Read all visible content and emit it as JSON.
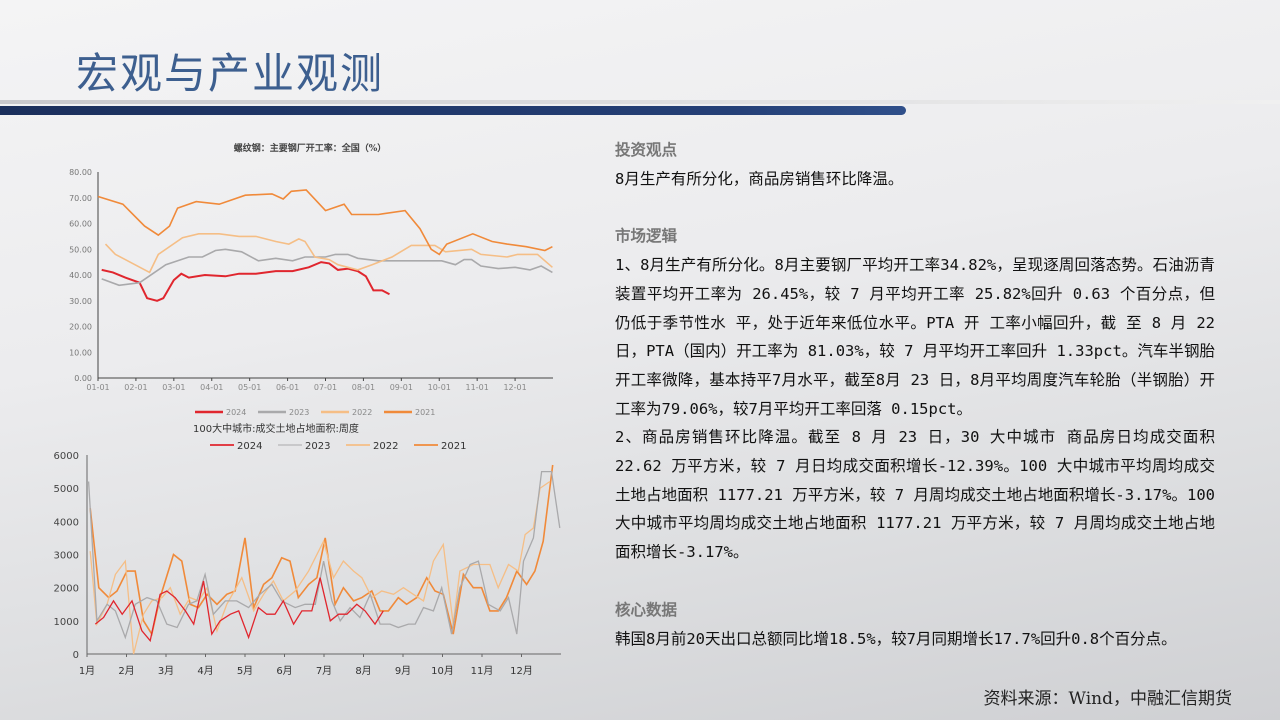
{
  "header": {
    "title": "宏观与产业观测"
  },
  "colors": {
    "s2024": "#e0262e",
    "s2023": "#a9a9ab",
    "s2022": "#f5be86",
    "s2021": "#f08a3a",
    "title": "#3d5f8f",
    "bar": "#1b2f5c"
  },
  "right": {
    "h1": "投资观点",
    "p1": "8月生产有所分化，商品房销售环比降温。",
    "h2": "市场逻辑",
    "p2": "1、8月生产有所分化。8月主要钢厂平均开工率34.82%，呈现逐周回落态势。石油沥青装置平均开工率为 26.45%，较 7 月平均开工率 25.82%回升 0.63 个百分点，但仍低于季节性水 平，处于近年来低位水平。PTA 开 工率小幅回升，截 至 8 月 22 日，PTA（国内）开工率为 81.03%，较 7 月平均开工率回升 1.33pct。汽车半钢胎开工率微降，基本持平7月水平，截至8月 23 日，8月平均周度汽车轮胎（半钢胎）开工率为79.06%，较7月平均开工率回落 0.15pct。",
    "p3": "2、商品房销售环比降温。截至 8 月 23 日，30 大中城市 商品房日均成交面积 22.62 万平方米，较 7 月日均成交面积增长-12.39%。100 大中城市平均周均成交土地占地面积 1177.21 万平方米，较 7 月周均成交土地占地面积增长-3.17%。100 大中城市平均周均成交土地占地面积 1177.21 万平方米，较 7 月周均成交土地占地面积增长-3.17%。",
    "h3": "核心数据",
    "p4": "韩国8月前20天出口总额同比增18.5%，较7月同期增长17.7%回升0.8个百分点。"
  },
  "source": "资料来源：Wind，中融汇信期货",
  "chart_data": [
    {
      "type": "line",
      "title": "螺纹钢：主要钢厂开工率：全国（%）",
      "ylim": [
        0,
        80
      ],
      "yticks": [
        "0.00",
        "10.00",
        "20.00",
        "30.00",
        "40.00",
        "50.00",
        "60.00",
        "70.00",
        "80.00"
      ],
      "xticks": [
        "01-01",
        "02-01",
        "03-01",
        "04-01",
        "05-01",
        "06-01",
        "07-01",
        "08-01",
        "09-01",
        "10-01",
        "11-01",
        "12-01"
      ],
      "legend": "bottom",
      "grid": false,
      "series": [
        {
          "name": "2024",
          "color": "#e0262e",
          "x": [
            "01-04",
            "01-13",
            "01-23",
            "02-04",
            "02-10",
            "02-18",
            "02-23",
            "03-01",
            "03-07",
            "03-13",
            "03-26",
            "04-12",
            "04-23",
            "05-06",
            "05-22",
            "06-05",
            "06-18",
            "06-28",
            "07-04",
            "07-11",
            "07-19",
            "07-27",
            "08-03",
            "08-09",
            "08-16",
            "08-22"
          ],
          "y": [
            42,
            41,
            39,
            37,
            31,
            30,
            31,
            38,
            40.5,
            39,
            40,
            39.5,
            40.5,
            40.5,
            41.5,
            41.5,
            43,
            45,
            44.5,
            42,
            42.5,
            41.5,
            39.5,
            34,
            34,
            32.5
          ]
        },
        {
          "name": "2023",
          "color": "#a9a9ab",
          "x": [
            "01-04",
            "01-18",
            "02-04",
            "02-25",
            "03-13",
            "03-24",
            "04-04",
            "04-12",
            "04-25",
            "05-08",
            "05-22",
            "06-05",
            "06-15",
            "07-01",
            "07-09",
            "07-19",
            "07-27",
            "08-13",
            "09-15",
            "10-03",
            "10-14",
            "10-21",
            "10-27",
            "11-04",
            "11-18",
            "12-01",
            "12-13",
            "12-22",
            "12-31"
          ],
          "y": [
            38.5,
            36,
            37,
            44,
            47,
            47,
            49.5,
            50,
            49,
            45.5,
            46.5,
            45.5,
            47,
            47,
            48,
            48,
            46.5,
            45.5,
            45.5,
            45.5,
            44,
            46,
            46,
            43.5,
            42.5,
            43,
            42,
            43.5,
            41
          ]
        },
        {
          "name": "2022",
          "color": "#f5be86",
          "x": [
            "01-07",
            "01-15",
            "02-12",
            "02-19",
            "03-08",
            "03-21",
            "04-07",
            "04-23",
            "05-06",
            "05-22",
            "06-02",
            "06-10",
            "06-15",
            "06-23",
            "07-04",
            "07-11",
            "07-27",
            "08-08",
            "08-24",
            "09-09",
            "09-28",
            "10-06",
            "10-27",
            "11-04",
            "11-25",
            "12-03",
            "12-19",
            "12-31"
          ],
          "y": [
            52,
            48,
            41,
            48,
            54.5,
            56,
            56,
            55,
            55,
            53,
            52,
            54,
            53,
            47,
            46,
            44,
            42,
            44,
            47,
            51.5,
            51.5,
            49,
            50,
            48,
            47,
            48,
            48,
            43
          ]
        },
        {
          "name": "2021",
          "color": "#f08a3a",
          "x": [
            "01-01",
            "01-21",
            "02-08",
            "02-19",
            "02-28",
            "03-04",
            "03-19",
            "04-07",
            "04-28",
            "05-19",
            "05-28",
            "06-04",
            "06-16",
            "07-01",
            "07-16",
            "07-22",
            "08-13",
            "09-04",
            "09-16",
            "09-25",
            "10-01",
            "10-07",
            "10-28",
            "11-13",
            "11-25",
            "12-10",
            "12-25",
            "12-31"
          ],
          "y": [
            70.5,
            67.5,
            59,
            55.5,
            59,
            66,
            68.5,
            67.5,
            71,
            71.5,
            69.5,
            72.5,
            73,
            65,
            67.5,
            63.5,
            63.5,
            65,
            58,
            50,
            48,
            52,
            56,
            53,
            52,
            51,
            49.5,
            51
          ]
        }
      ]
    },
    {
      "type": "line",
      "title": "100大中城市:成交土地占地面积:周度",
      "ylim": [
        0,
        6000
      ],
      "yticks": [
        "0",
        "1000",
        "2000",
        "3000",
        "4000",
        "5000",
        "6000"
      ],
      "xticks": [
        "1月",
        "2月",
        "3月",
        "4月",
        "5月",
        "6月",
        "7月",
        "8月",
        "9月",
        "10月",
        "11月",
        "12月"
      ],
      "legend": "top",
      "grid": false,
      "series": [
        {
          "name": "2024",
          "color": "#e0262e",
          "x": [
            1.21,
            1.42,
            1.67,
            1.89,
            2.14,
            2.39,
            2.6,
            2.85,
            3.02,
            3.23,
            3.49,
            3.7,
            3.95,
            4.16,
            4.37,
            4.63,
            4.84,
            5.09,
            5.34,
            5.55,
            5.76,
            5.97,
            6.23,
            6.44,
            6.69,
            6.9,
            7.16,
            7.37,
            7.58,
            7.83,
            8.04,
            8.29,
            8.5
          ],
          "y": [
            900,
            1100,
            1600,
            1200,
            1600,
            700,
            400,
            1800,
            1900,
            1700,
            1300,
            900,
            2200,
            600,
            1000,
            1200,
            1300,
            500,
            1400,
            1200,
            1200,
            1600,
            900,
            1300,
            1300,
            2300,
            1000,
            1200,
            1200,
            1500,
            1300,
            900,
            1300
          ]
        },
        {
          "name": "2023",
          "color": "#a9a9ab",
          "x": [
            1.04,
            1.25,
            1.51,
            1.72,
            1.97,
            2.22,
            2.52,
            2.77,
            3.02,
            3.28,
            3.57,
            3.78,
            3.99,
            4.2,
            4.5,
            4.79,
            5.09,
            5.38,
            5.68,
            5.93,
            6.27,
            6.52,
            6.78,
            6.99,
            7.2,
            7.41,
            7.66,
            7.91,
            8.17,
            8.42,
            8.67,
            8.88,
            9.14,
            9.31,
            9.52,
            9.77,
            9.98,
            10.23,
            10.44,
            10.7,
            10.91,
            11.16,
            11.46,
            11.67,
            11.88,
            12.05,
            12.3,
            12.51,
            12.76,
            12.97
          ],
          "y": [
            5200,
            1000,
            1500,
            1300,
            500,
            1500,
            1700,
            1600,
            900,
            800,
            1500,
            1600,
            2400,
            1200,
            1600,
            1600,
            1400,
            1800,
            2100,
            1600,
            1400,
            1500,
            1500,
            2800,
            1600,
            1000,
            1400,
            1100,
            1800,
            900,
            900,
            800,
            900,
            900,
            1400,
            1300,
            2000,
            600,
            2000,
            2700,
            2800,
            1500,
            1300,
            1700,
            600,
            2800,
            3500,
            5500,
            5500,
            3800
          ]
        },
        {
          "name": "2022",
          "color": "#f5be86",
          "x": [
            1.08,
            1.25,
            1.51,
            1.72,
            1.97,
            2.18,
            2.43,
            2.64,
            2.9,
            3.11,
            3.36,
            3.61,
            3.82,
            4.04,
            4.29,
            4.54,
            4.92,
            5.22,
            5.47,
            5.72,
            5.97,
            6.27,
            6.61,
            6.99,
            7.24,
            7.49,
            7.75,
            7.96,
            8.21,
            8.46,
            8.76,
            9.01,
            9.26,
            9.52,
            9.77,
            10.02,
            10.27,
            10.44,
            10.78,
            11.03,
            11.2,
            11.41,
            11.67,
            11.92,
            12.09,
            12.3,
            12.47,
            12.72
          ],
          "y": [
            3100,
            900,
            1500,
            2400,
            2800,
            0,
            1200,
            1600,
            1700,
            2000,
            1200,
            1700,
            1600,
            2000,
            700,
            1500,
            2300,
            1300,
            1800,
            2200,
            1600,
            1900,
            2500,
            3400,
            2300,
            2800,
            2500,
            2300,
            1700,
            1900,
            1800,
            2000,
            1800,
            1600,
            2800,
            3300,
            900,
            2500,
            2700,
            2700,
            2700,
            2000,
            2700,
            2500,
            3600,
            3800,
            5000,
            5200
          ]
        },
        {
          "name": "2021",
          "color": "#f08a3a",
          "x": [
            1.08,
            1.3,
            1.55,
            1.76,
            2.01,
            2.22,
            2.43,
            2.64,
            2.85,
            3.19,
            3.4,
            3.61,
            3.82,
            4.04,
            4.29,
            4.54,
            4.75,
            5.0,
            5.22,
            5.47,
            5.68,
            5.93,
            6.14,
            6.35,
            6.61,
            6.82,
            7.03,
            7.28,
            7.49,
            7.75,
            7.96,
            8.21,
            8.42,
            8.63,
            8.88,
            9.09,
            9.35,
            9.6,
            9.81,
            10.02,
            10.27,
            10.53,
            10.78,
            10.99,
            11.2,
            11.41,
            11.62,
            11.88,
            12.13,
            12.34,
            12.55,
            12.79
          ],
          "y": [
            4400,
            2000,
            1700,
            1900,
            2500,
            2500,
            1000,
            600,
            1700,
            3000,
            2800,
            1500,
            1400,
            1800,
            1500,
            1800,
            1900,
            3500,
            1400,
            2100,
            2300,
            2900,
            2800,
            1700,
            2100,
            2300,
            3500,
            1500,
            2000,
            1600,
            1700,
            1900,
            1300,
            1300,
            1700,
            1500,
            1700,
            2300,
            1900,
            1800,
            600,
            2400,
            2000,
            2000,
            1300,
            1300,
            1700,
            2500,
            2100,
            2500,
            3400,
            5700
          ]
        }
      ]
    }
  ]
}
